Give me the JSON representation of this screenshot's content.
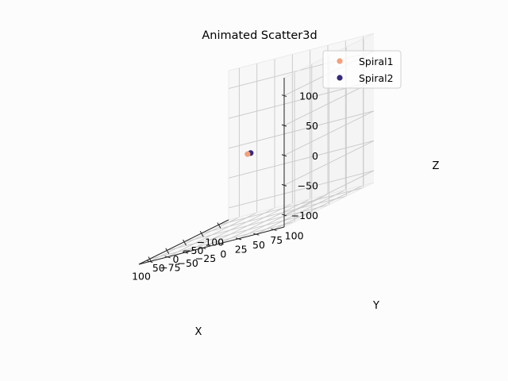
{
  "chart_data": {
    "type": "scatter",
    "projection": "3d",
    "title": "Animated Scatter3d",
    "xlabel": "X",
    "ylabel": "Y",
    "zlabel": "Z",
    "grid": true,
    "legend_position": "upper right",
    "axes": {
      "x": {
        "ticks": [
          -100,
          -50,
          0,
          50,
          100
        ],
        "tick_labels": [
          "−100",
          "−50",
          "0",
          "50",
          "100"
        ]
      },
      "y": {
        "ticks": [
          -75,
          -50,
          -25,
          0,
          25,
          50,
          75,
          100
        ],
        "tick_labels": [
          "−75",
          "−50",
          "−25",
          "0",
          "25",
          "50",
          "75",
          "100"
        ]
      },
      "z": {
        "ticks": [
          -100,
          -50,
          0,
          50,
          100
        ],
        "tick_labels": [
          "−100",
          "−50",
          "0",
          "50",
          "100"
        ]
      }
    },
    "series": [
      {
        "name": "Spiral1",
        "color": "#f4a07a",
        "points": [
          {
            "x": 0,
            "y": 0,
            "z": 0
          }
        ]
      },
      {
        "name": "Spiral2",
        "color": "#362a7d",
        "points": [
          {
            "x": -3,
            "y": 3,
            "z": 0
          }
        ]
      }
    ]
  }
}
